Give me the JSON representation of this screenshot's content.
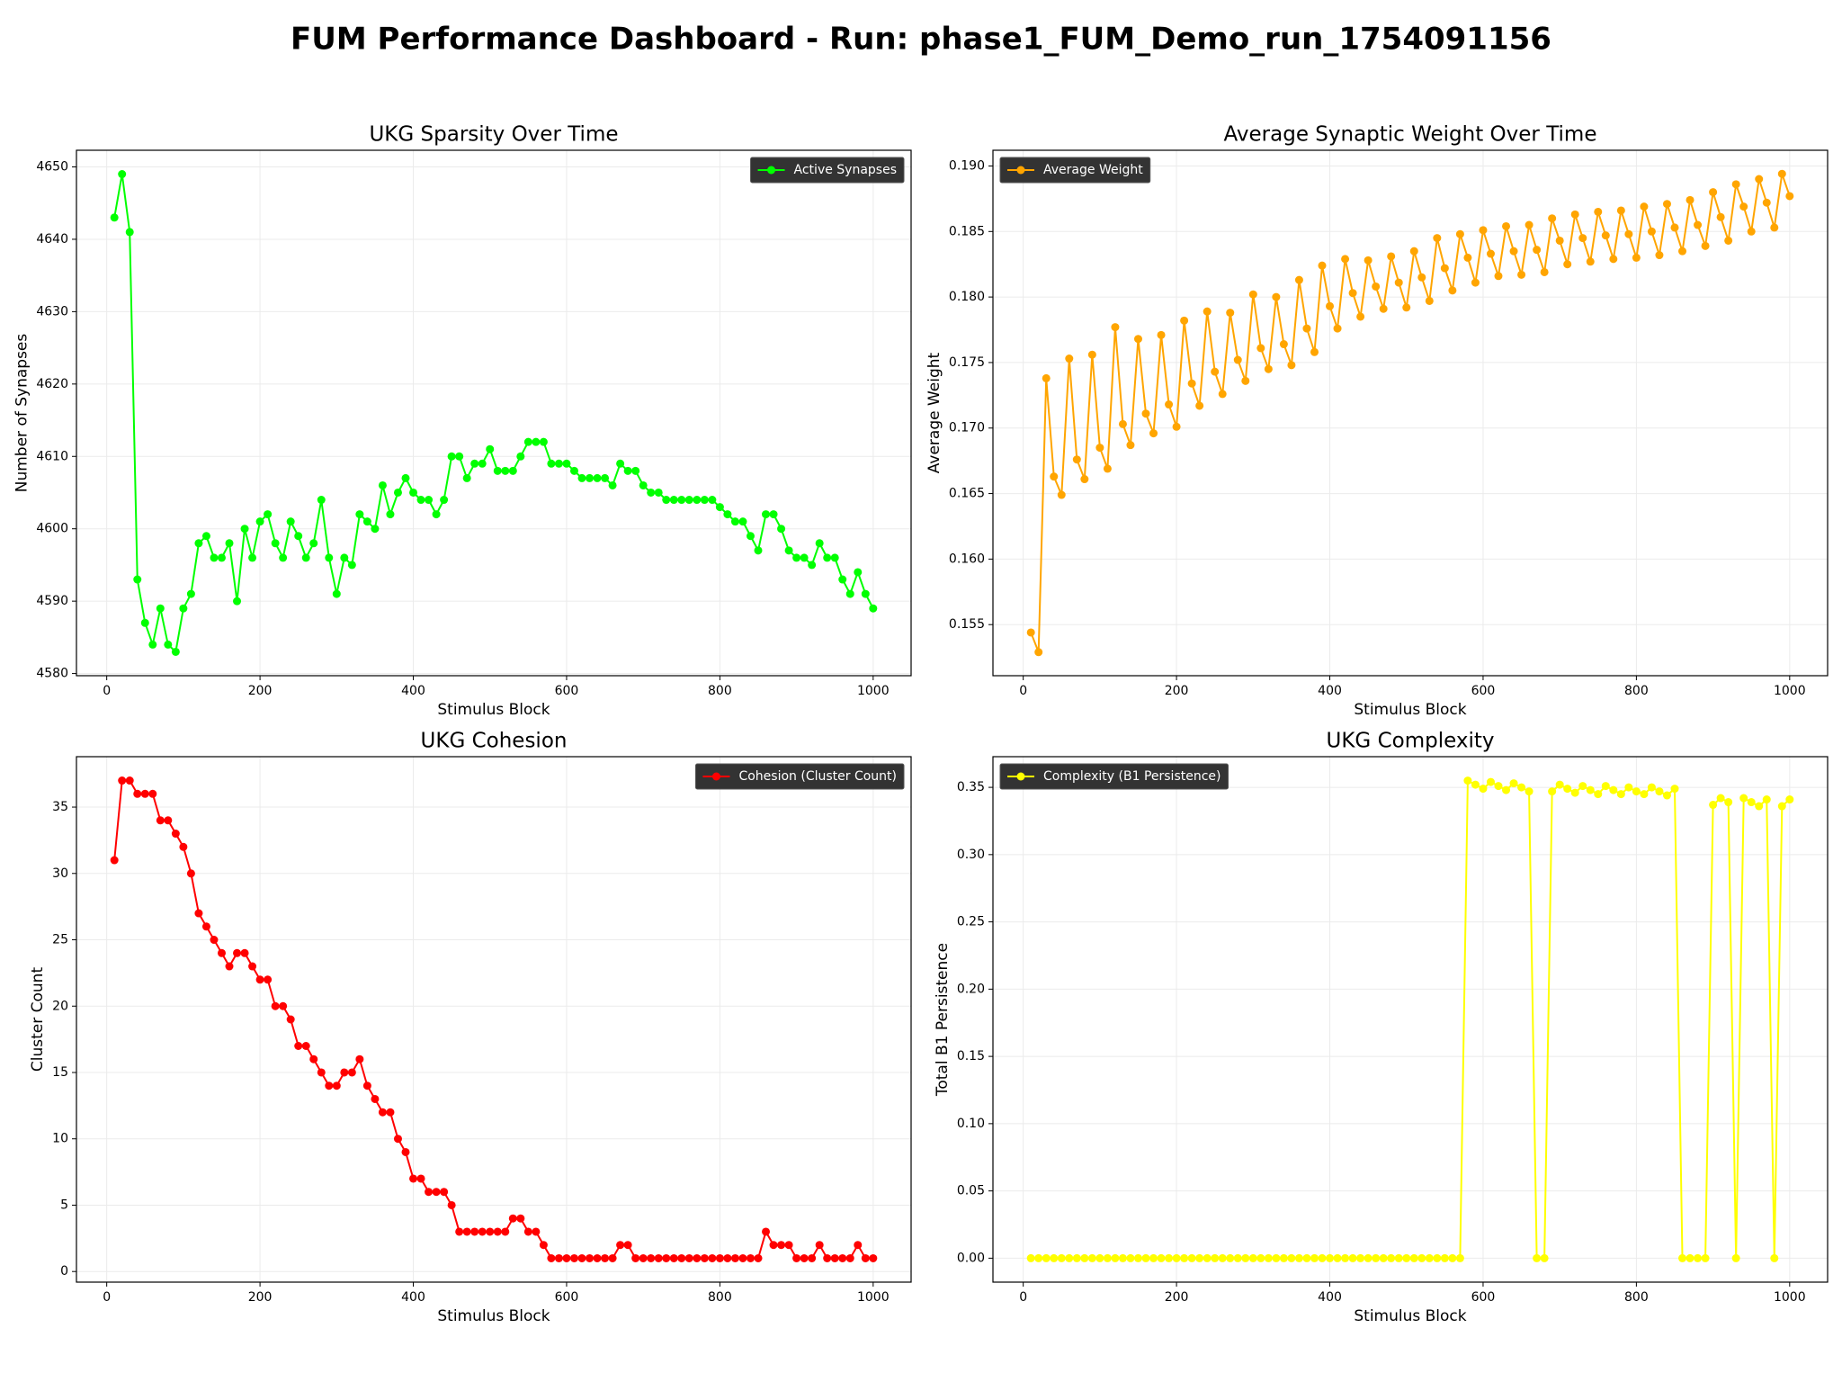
{
  "title": "FUM Performance Dashboard - Run: phase1_FUM_Demo_run_1754091156",
  "chart_data": [
    {
      "type": "line",
      "title": "UKG Sparsity Over Time",
      "xlabel": "Stimulus Block",
      "ylabel": "Number of Synapses",
      "x": [
        10,
        20,
        30,
        40,
        50,
        60,
        70,
        80,
        90,
        100,
        110,
        120,
        130,
        140,
        150,
        160,
        170,
        180,
        190,
        200,
        210,
        220,
        230,
        240,
        250,
        260,
        270,
        280,
        290,
        300,
        310,
        320,
        330,
        340,
        350,
        360,
        370,
        380,
        390,
        400,
        410,
        420,
        430,
        440,
        450,
        460,
        470,
        480,
        490,
        500,
        510,
        520,
        530,
        540,
        550,
        560,
        570,
        580,
        590,
        600,
        610,
        620,
        630,
        640,
        650,
        660,
        670,
        680,
        690,
        700,
        710,
        720,
        730,
        740,
        750,
        760,
        770,
        780,
        790,
        800,
        810,
        820,
        830,
        840,
        850,
        860,
        870,
        880,
        890,
        900,
        910,
        920,
        930,
        940,
        950,
        960,
        970,
        980,
        990,
        1000
      ],
      "series": [
        {
          "name": "Active Synapses",
          "color": "#00ff00",
          "values": [
            4643,
            4649,
            4641,
            4593,
            4587,
            4584,
            4589,
            4584,
            4583,
            4589,
            4591,
            4598,
            4599,
            4596,
            4596,
            4598,
            4590,
            4600,
            4596,
            4601,
            4602,
            4598,
            4596,
            4601,
            4599,
            4596,
            4598,
            4604,
            4596,
            4591,
            4596,
            4595,
            4602,
            4601,
            4600,
            4606,
            4602,
            4605,
            4607,
            4605,
            4604,
            4604,
            4602,
            4604,
            4610,
            4610,
            4607,
            4609,
            4609,
            4611,
            4608,
            4608,
            4608,
            4610,
            4612,
            4612,
            4612,
            4609,
            4609,
            4609,
            4608,
            4607,
            4607,
            4607,
            4607,
            4606,
            4609,
            4608,
            4608,
            4606,
            4605,
            4605,
            4604,
            4604,
            4604,
            4604,
            4604,
            4604,
            4604,
            4603,
            4602,
            4601,
            4601,
            4599,
            4597,
            4602,
            4602,
            4600,
            4597,
            4596,
            4596,
            4595,
            4598,
            4596,
            4596,
            4593,
            4591,
            4594,
            4591,
            4589
          ]
        }
      ],
      "xlim": [
        -39.5,
        1049.5
      ],
      "xticks": [
        0,
        200,
        400,
        600,
        800,
        1000
      ],
      "ylim": [
        4579.7,
        4652.3
      ],
      "yticks": [
        4580,
        4590,
        4600,
        4610,
        4620,
        4630,
        4640,
        4650
      ],
      "grid": true,
      "legend": "upper right"
    },
    {
      "type": "line",
      "title": "Average Synaptic Weight Over Time",
      "xlabel": "Stimulus Block",
      "ylabel": "Average Weight",
      "x": [
        10,
        20,
        30,
        40,
        50,
        60,
        70,
        80,
        90,
        100,
        110,
        120,
        130,
        140,
        150,
        160,
        170,
        180,
        190,
        200,
        210,
        220,
        230,
        240,
        250,
        260,
        270,
        280,
        290,
        300,
        310,
        320,
        330,
        340,
        350,
        360,
        370,
        380,
        390,
        400,
        410,
        420,
        430,
        440,
        450,
        460,
        470,
        480,
        490,
        500,
        510,
        520,
        530,
        540,
        550,
        560,
        570,
        580,
        590,
        600,
        610,
        620,
        630,
        640,
        650,
        660,
        670,
        680,
        690,
        700,
        710,
        720,
        730,
        740,
        750,
        760,
        770,
        780,
        790,
        800,
        810,
        820,
        830,
        840,
        850,
        860,
        870,
        880,
        890,
        900,
        910,
        920,
        930,
        940,
        950,
        960,
        970,
        980,
        990,
        1000
      ],
      "series": [
        {
          "name": "Average Weight",
          "color": "#ffa500",
          "values": [
            0.1544,
            0.1529,
            0.1738,
            0.1663,
            0.1649,
            0.1753,
            0.1676,
            0.1661,
            0.1756,
            0.1685,
            0.1669,
            0.1777,
            0.1703,
            0.1687,
            0.1768,
            0.1711,
            0.1696,
            0.1771,
            0.1718,
            0.1701,
            0.1782,
            0.1734,
            0.1717,
            0.1789,
            0.1743,
            0.1726,
            0.1788,
            0.1752,
            0.1736,
            0.1802,
            0.1761,
            0.1745,
            0.18,
            0.1764,
            0.1748,
            0.1813,
            0.1776,
            0.1758,
            0.1824,
            0.1793,
            0.1776,
            0.1829,
            0.1803,
            0.1785,
            0.1828,
            0.1808,
            0.1791,
            0.1831,
            0.1811,
            0.1792,
            0.1835,
            0.1815,
            0.1797,
            0.1845,
            0.1822,
            0.1805,
            0.1848,
            0.183,
            0.1811,
            0.1851,
            0.1833,
            0.1816,
            0.1854,
            0.1835,
            0.1817,
            0.1855,
            0.1836,
            0.1819,
            0.186,
            0.1843,
            0.1825,
            0.1863,
            0.1845,
            0.1827,
            0.1865,
            0.1847,
            0.1829,
            0.1866,
            0.1848,
            0.183,
            0.1869,
            0.185,
            0.1832,
            0.1871,
            0.1853,
            0.1835,
            0.1874,
            0.1855,
            0.1839,
            0.188,
            0.1861,
            0.1843,
            0.1886,
            0.1869,
            0.185,
            0.189,
            0.1872,
            0.1853,
            0.1894,
            0.1877
          ]
        }
      ],
      "xlim": [
        -39.5,
        1049.5
      ],
      "xticks": [
        0,
        200,
        400,
        600,
        800,
        1000
      ],
      "ylim": [
        0.1511,
        0.1912
      ],
      "yticks": [
        0.155,
        {
          "value": 0.16,
          "label": "0.160"
        },
        0.165,
        {
          "value": 0.17,
          "label": "0.170"
        },
        0.175,
        {
          "value": 0.18,
          "label": "0.180"
        },
        0.185,
        {
          "value": 0.19,
          "label": "0.190"
        }
      ],
      "grid": true,
      "legend": "upper left"
    },
    {
      "type": "line",
      "title": "UKG Cohesion",
      "xlabel": "Stimulus Block",
      "ylabel": "Cluster Count",
      "x": [
        10,
        20,
        30,
        40,
        50,
        60,
        70,
        80,
        90,
        100,
        110,
        120,
        130,
        140,
        150,
        160,
        170,
        180,
        190,
        200,
        210,
        220,
        230,
        240,
        250,
        260,
        270,
        280,
        290,
        300,
        310,
        320,
        330,
        340,
        350,
        360,
        370,
        380,
        390,
        400,
        410,
        420,
        430,
        440,
        450,
        460,
        470,
        480,
        490,
        500,
        510,
        520,
        530,
        540,
        550,
        560,
        570,
        580,
        590,
        600,
        610,
        620,
        630,
        640,
        650,
        660,
        670,
        680,
        690,
        700,
        710,
        720,
        730,
        740,
        750,
        760,
        770,
        780,
        790,
        800,
        810,
        820,
        830,
        840,
        850,
        860,
        870,
        880,
        890,
        900,
        910,
        920,
        930,
        940,
        950,
        960,
        970,
        980,
        990,
        1000
      ],
      "series": [
        {
          "name": "Cohesion (Cluster Count)",
          "color": "#ff0000",
          "values": [
            31,
            37,
            37,
            36,
            36,
            36,
            34,
            34,
            33,
            32,
            30,
            27,
            26,
            25,
            24,
            23,
            24,
            24,
            23,
            22,
            22,
            20,
            20,
            19,
            17,
            17,
            16,
            15,
            14,
            14,
            15,
            15,
            16,
            14,
            13,
            12,
            12,
            10,
            9,
            7,
            7,
            6,
            6,
            6,
            5,
            3,
            3,
            3,
            3,
            3,
            3,
            3,
            4,
            4,
            3,
            3,
            2,
            1,
            1,
            1,
            1,
            1,
            1,
            1,
            1,
            1,
            2,
            2,
            1,
            1,
            1,
            1,
            1,
            1,
            1,
            1,
            1,
            1,
            1,
            1,
            1,
            1,
            1,
            1,
            1,
            3,
            2,
            2,
            2,
            1,
            1,
            1,
            2,
            1,
            1,
            1,
            1,
            2,
            1,
            1
          ]
        }
      ],
      "xlim": [
        -39.5,
        1049.5
      ],
      "xticks": [
        0,
        200,
        400,
        600,
        800,
        1000
      ],
      "ylim": [
        -0.8,
        38.8
      ],
      "yticks": [
        0,
        5,
        10,
        15,
        20,
        25,
        30,
        35
      ],
      "grid": true,
      "legend": "upper right"
    },
    {
      "type": "line",
      "title": "UKG Complexity",
      "xlabel": "Stimulus Block",
      "ylabel": "Total B1 Persistence",
      "x": [
        10,
        20,
        30,
        40,
        50,
        60,
        70,
        80,
        90,
        100,
        110,
        120,
        130,
        140,
        150,
        160,
        170,
        180,
        190,
        200,
        210,
        220,
        230,
        240,
        250,
        260,
        270,
        280,
        290,
        300,
        310,
        320,
        330,
        340,
        350,
        360,
        370,
        380,
        390,
        400,
        410,
        420,
        430,
        440,
        450,
        460,
        470,
        480,
        490,
        500,
        510,
        520,
        530,
        540,
        550,
        560,
        570,
        580,
        590,
        600,
        610,
        620,
        630,
        640,
        650,
        660,
        670,
        680,
        690,
        700,
        710,
        720,
        730,
        740,
        750,
        760,
        770,
        780,
        790,
        800,
        810,
        820,
        830,
        840,
        850,
        860,
        870,
        880,
        890,
        900,
        910,
        920,
        930,
        940,
        950,
        960,
        970,
        980,
        990,
        1000
      ],
      "series": [
        {
          "name": "Complexity (B1 Persistence)",
          "color": "#ffff00",
          "values": [
            0,
            0,
            0,
            0,
            0,
            0,
            0,
            0,
            0,
            0,
            0,
            0,
            0,
            0,
            0,
            0,
            0,
            0,
            0,
            0,
            0,
            0,
            0,
            0,
            0,
            0,
            0,
            0,
            0,
            0,
            0,
            0,
            0,
            0,
            0,
            0,
            0,
            0,
            0,
            0,
            0,
            0,
            0,
            0,
            0,
            0,
            0,
            0,
            0,
            0,
            0,
            0,
            0,
            0,
            0,
            0,
            0,
            0.355,
            0.352,
            0.349,
            0.354,
            0.351,
            0.348,
            0.353,
            0.35,
            0.347,
            0,
            0,
            0.347,
            0.352,
            0.349,
            0.346,
            0.351,
            0.348,
            0.345,
            0.351,
            0.348,
            0.345,
            0.35,
            0.347,
            0.345,
            0.35,
            0.347,
            0.344,
            0.349,
            0,
            0,
            0,
            0,
            0.337,
            0.342,
            0.339,
            0,
            0.342,
            0.339,
            0.336,
            0.341,
            0,
            0.336,
            0.341
          ]
        }
      ],
      "xlim": [
        -39.5,
        1049.5
      ],
      "xticks": [
        0,
        200,
        400,
        600,
        800,
        1000
      ],
      "ylim": [
        -0.0178,
        0.3728
      ],
      "yticks": [
        {
          "value": 0,
          "label": "0.00"
        },
        0.05,
        {
          "value": 0.1,
          "label": "0.10"
        },
        0.15,
        {
          "value": 0.2,
          "label": "0.20"
        },
        0.25,
        {
          "value": 0.3,
          "label": "0.30"
        },
        0.35
      ],
      "grid": true,
      "legend": "upper left"
    }
  ]
}
